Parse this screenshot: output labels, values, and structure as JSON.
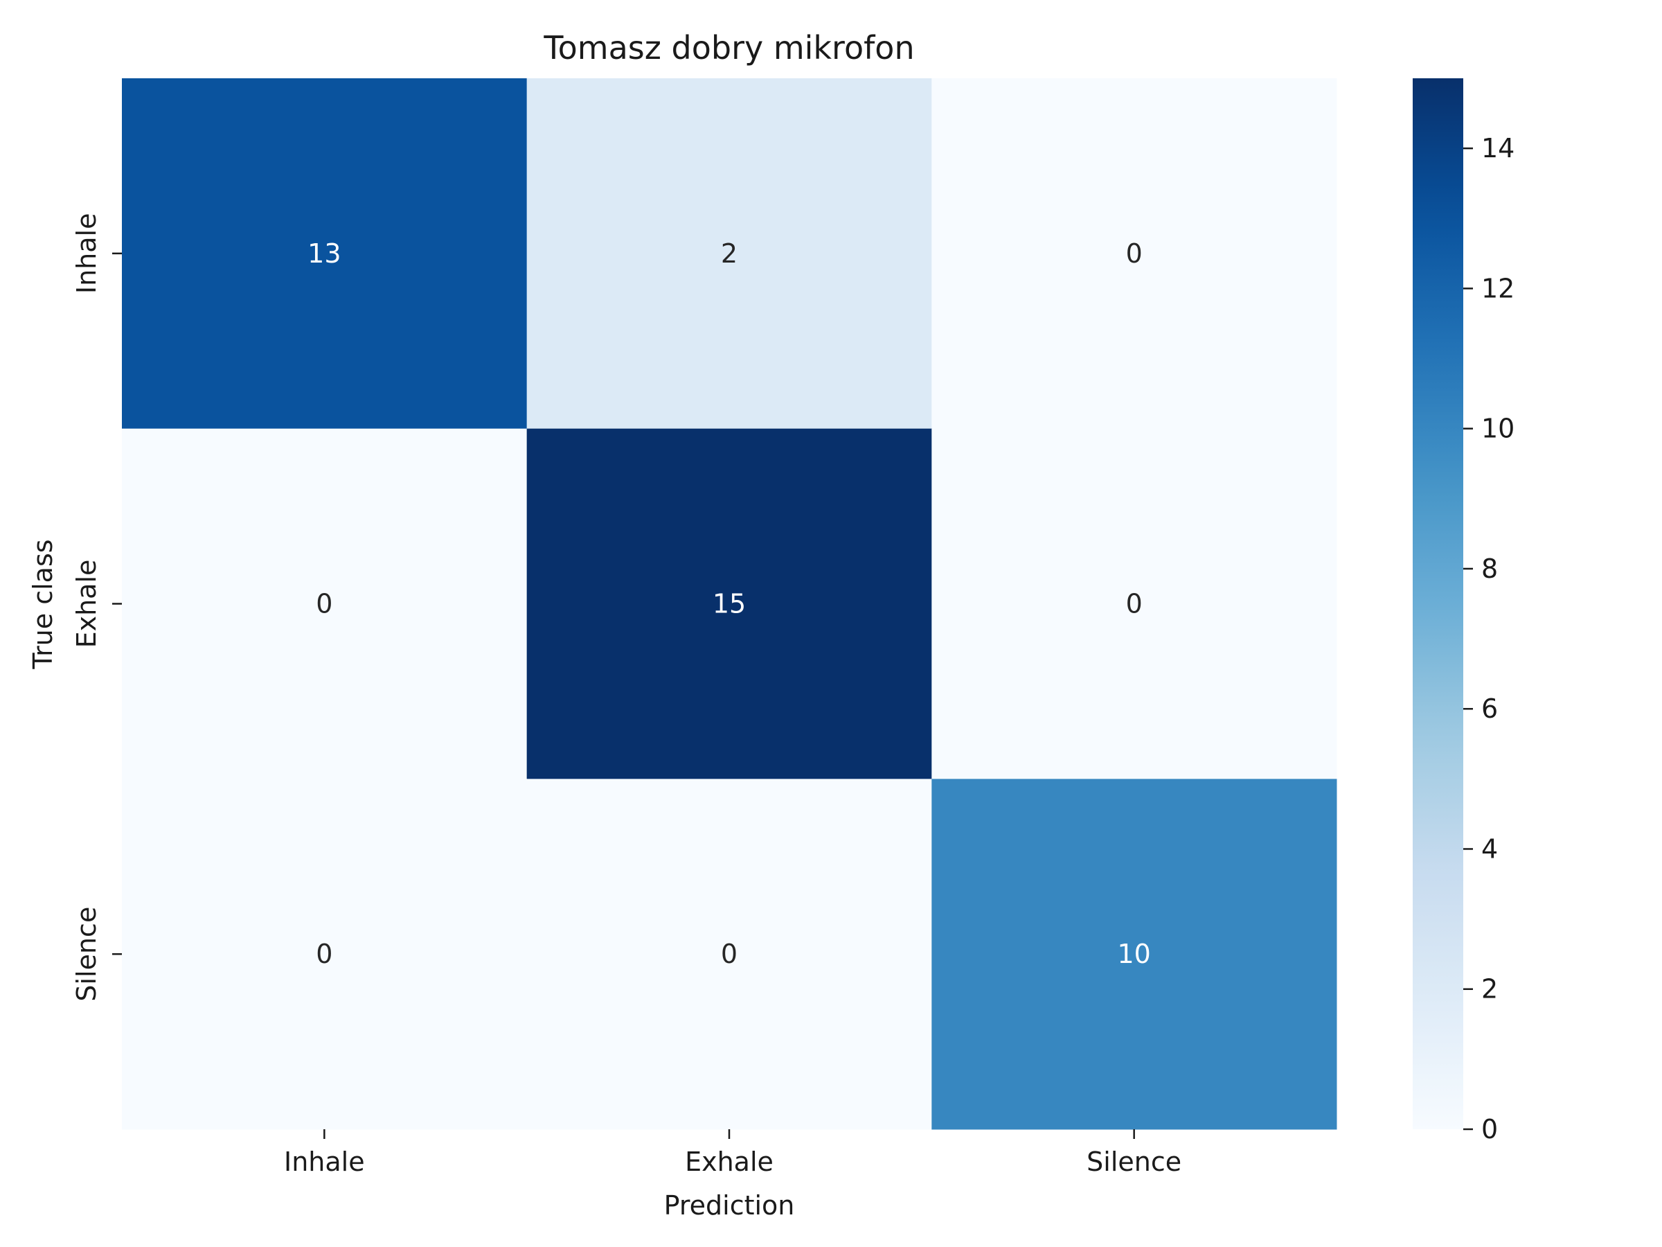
{
  "chart_data": {
    "type": "heatmap",
    "title": "Tomasz dobry mikrofon",
    "xlabel": "Prediction",
    "ylabel": "True class",
    "x_categories": [
      "Inhale",
      "Exhale",
      "Silence"
    ],
    "y_categories": [
      "Inhale",
      "Exhale",
      "Silence"
    ],
    "values": [
      [
        13,
        2,
        0
      ],
      [
        0,
        15,
        0
      ],
      [
        0,
        0,
        10
      ]
    ],
    "colormap": "Blues",
    "color_range": [
      0,
      15
    ],
    "colorbar_ticks": [
      0,
      2,
      4,
      6,
      8,
      10,
      12,
      14
    ],
    "annotation_colors": {
      "light_bg": "#262626",
      "dark_bg": "#ffffff"
    }
  }
}
